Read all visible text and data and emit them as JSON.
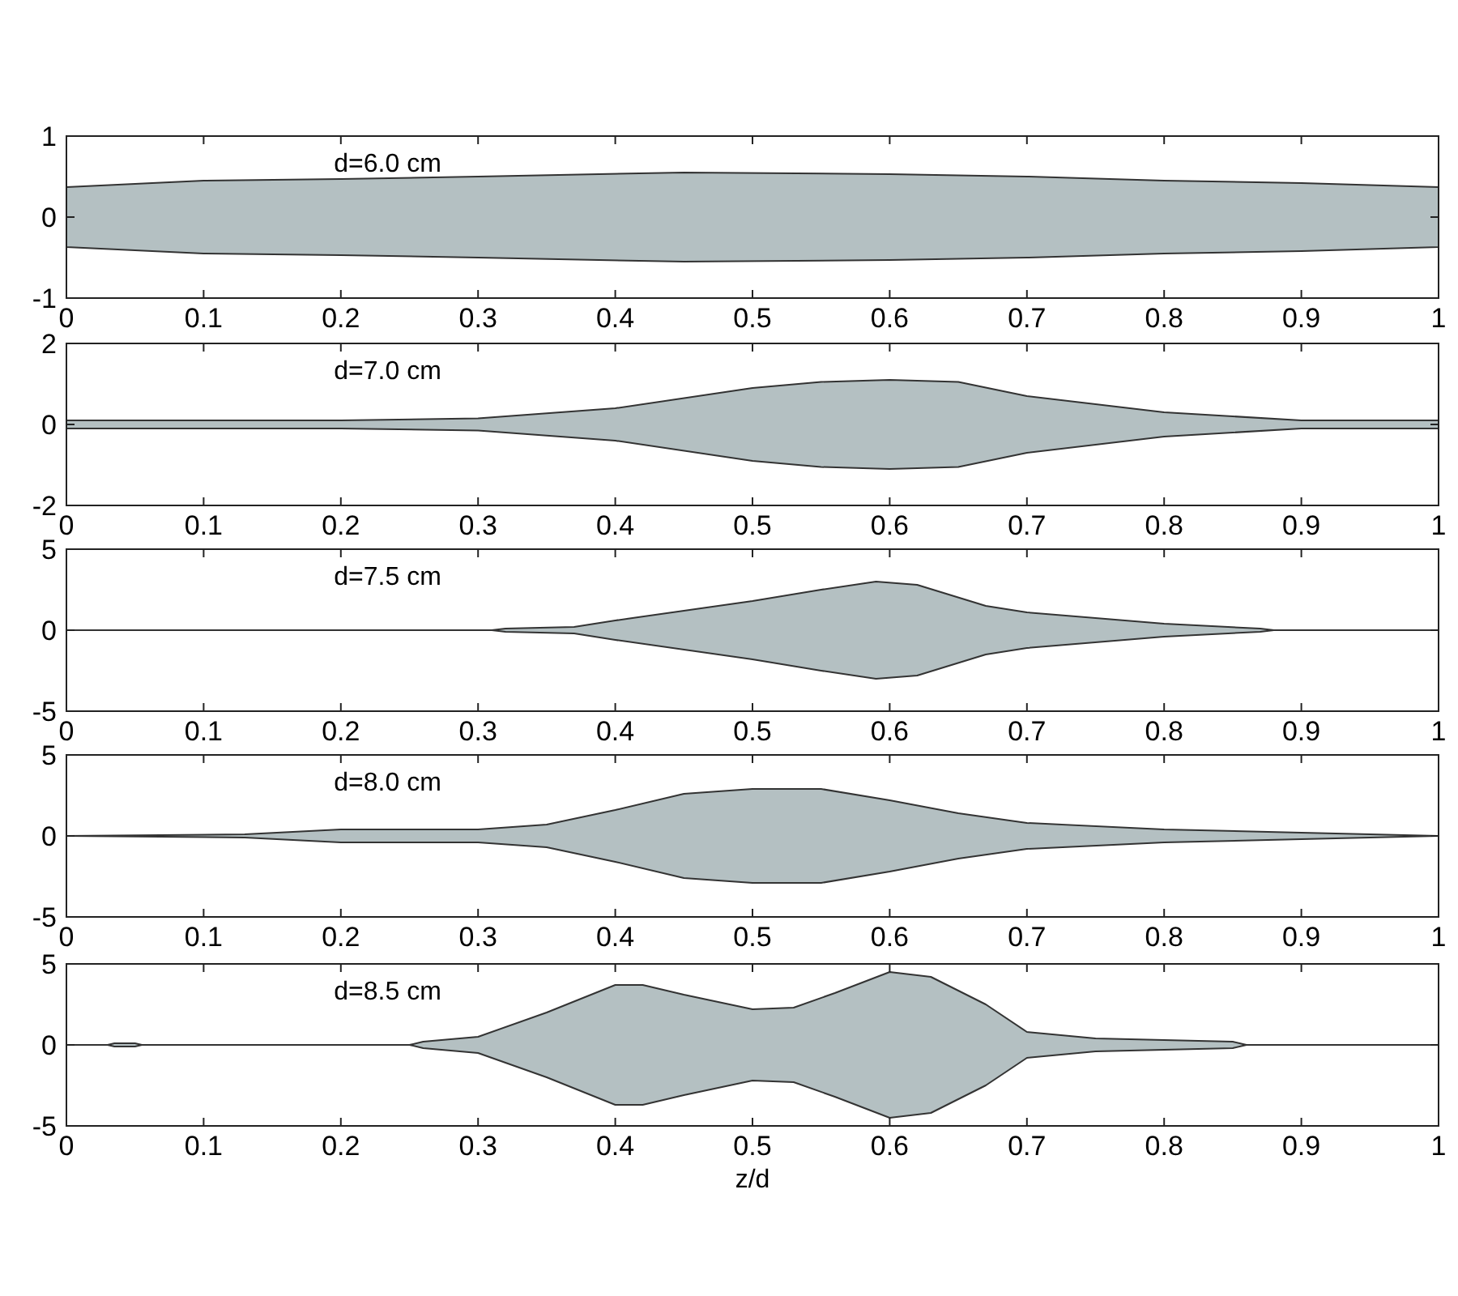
{
  "chart_data": [
    {
      "type": "area",
      "title": "d=6.0 cm",
      "x": [
        0,
        0.1,
        0.2,
        0.3,
        0.45,
        0.6,
        0.7,
        0.8,
        0.9,
        1
      ],
      "xlim": [
        0,
        1
      ],
      "xticks": [
        0,
        0.1,
        0.2,
        0.3,
        0.4,
        0.5,
        0.6,
        0.7,
        0.8,
        0.9,
        1
      ],
      "ylim": [
        -1,
        1
      ],
      "yticks": [
        -1,
        0,
        1
      ],
      "grid": false,
      "series": [
        {
          "color": "#b4c0c2",
          "values": [
            0.37,
            0.45,
            0.47,
            0.5,
            0.55,
            0.53,
            0.5,
            0.45,
            0.42,
            0.37
          ]
        },
        {
          "color": "#b4c0c2",
          "values": [
            -0.37,
            -0.45,
            -0.47,
            -0.5,
            -0.55,
            -0.53,
            -0.5,
            -0.45,
            -0.42,
            -0.37
          ]
        }
      ]
    },
    {
      "type": "area",
      "title": "d=7.0 cm",
      "x": [
        0,
        0.1,
        0.2,
        0.3,
        0.4,
        0.5,
        0.55,
        0.6,
        0.65,
        0.7,
        0.8,
        0.9,
        1
      ],
      "xlim": [
        0,
        1
      ],
      "xticks": [
        0,
        0.1,
        0.2,
        0.3,
        0.4,
        0.5,
        0.6,
        0.7,
        0.8,
        0.9,
        1
      ],
      "ylim": [
        -2,
        2
      ],
      "yticks": [
        -2,
        0,
        2
      ],
      "grid": false,
      "series": [
        {
          "color": "#b4c0c2",
          "values": [
            0.1,
            0.1,
            0.1,
            0.15,
            0.4,
            0.9,
            1.05,
            1.1,
            1.05,
            0.7,
            0.3,
            0.1,
            0.1
          ]
        },
        {
          "color": "#b4c0c2",
          "values": [
            -0.1,
            -0.1,
            -0.1,
            -0.15,
            -0.4,
            -0.9,
            -1.05,
            -1.1,
            -1.05,
            -0.7,
            -0.3,
            -0.1,
            -0.1
          ]
        }
      ]
    },
    {
      "type": "area",
      "title": "d=7.5 cm",
      "x": [
        0,
        0.31,
        0.32,
        0.37,
        0.4,
        0.5,
        0.55,
        0.59,
        0.62,
        0.67,
        0.7,
        0.8,
        0.87,
        0.88,
        1
      ],
      "xlim": [
        0,
        1
      ],
      "xticks": [
        0,
        0.1,
        0.2,
        0.3,
        0.4,
        0.5,
        0.6,
        0.7,
        0.8,
        0.9,
        1
      ],
      "ylim": [
        -5,
        5
      ],
      "yticks": [
        -5,
        0,
        5
      ],
      "grid": false,
      "series": [
        {
          "color": "#b4c0c2",
          "values": [
            0,
            0,
            0.1,
            0.2,
            0.6,
            1.8,
            2.5,
            3,
            2.8,
            1.5,
            1.1,
            0.4,
            0.1,
            0,
            0
          ]
        },
        {
          "color": "#b4c0c2",
          "values": [
            0,
            0,
            -0.1,
            -0.2,
            -0.6,
            -1.8,
            -2.5,
            -3,
            -2.8,
            -1.5,
            -1.1,
            -0.4,
            -0.1,
            0,
            0
          ]
        }
      ]
    },
    {
      "type": "area",
      "title": "d=8.0 cm",
      "x": [
        0,
        0.13,
        0.2,
        0.3,
        0.35,
        0.4,
        0.45,
        0.5,
        0.55,
        0.6,
        0.65,
        0.7,
        0.8,
        0.9,
        1
      ],
      "xlim": [
        0,
        1
      ],
      "xticks": [
        0,
        0.1,
        0.2,
        0.3,
        0.4,
        0.5,
        0.6,
        0.7,
        0.8,
        0.9,
        1
      ],
      "ylim": [
        -5,
        5
      ],
      "yticks": [
        -5,
        0,
        5
      ],
      "grid": false,
      "series": [
        {
          "color": "#b4c0c2",
          "values": [
            0,
            0.1,
            0.4,
            0.4,
            0.7,
            1.6,
            2.6,
            2.9,
            2.9,
            2.2,
            1.4,
            0.8,
            0.4,
            0.2,
            0
          ]
        },
        {
          "color": "#b4c0c2",
          "values": [
            0,
            -0.1,
            -0.4,
            -0.4,
            -0.7,
            -1.6,
            -2.6,
            -2.9,
            -2.9,
            -2.2,
            -1.4,
            -0.8,
            -0.4,
            -0.2,
            0
          ]
        }
      ]
    },
    {
      "type": "area",
      "title": "d=8.5 cm",
      "xlabel": "z/d",
      "x": [
        0,
        0.03,
        0.035,
        0.05,
        0.055,
        0.25,
        0.26,
        0.3,
        0.35,
        0.4,
        0.42,
        0.45,
        0.5,
        0.53,
        0.56,
        0.6,
        0.63,
        0.67,
        0.7,
        0.75,
        0.8,
        0.85,
        0.86,
        1
      ],
      "xlim": [
        0,
        1
      ],
      "xticks": [
        0,
        0.1,
        0.2,
        0.3,
        0.4,
        0.5,
        0.6,
        0.7,
        0.8,
        0.9,
        1
      ],
      "ylim": [
        -5,
        5
      ],
      "yticks": [
        -5,
        0,
        5
      ],
      "grid": false,
      "series": [
        {
          "color": "#b4c0c2",
          "values": [
            0,
            0,
            0.1,
            0.1,
            0,
            0,
            0.2,
            0.5,
            2,
            3.7,
            3.7,
            3.1,
            2.2,
            2.3,
            3.2,
            4.5,
            4.2,
            2.5,
            0.8,
            0.4,
            0.3,
            0.2,
            0,
            0
          ]
        },
        {
          "color": "#b4c0c2",
          "values": [
            0,
            0,
            -0.1,
            -0.1,
            0,
            0,
            -0.2,
            -0.5,
            -2,
            -3.7,
            -3.7,
            -3.1,
            -2.2,
            -2.3,
            -3.2,
            -4.5,
            -4.2,
            -2.5,
            -0.8,
            -0.4,
            -0.3,
            -0.2,
            0,
            0
          ]
        }
      ]
    }
  ]
}
